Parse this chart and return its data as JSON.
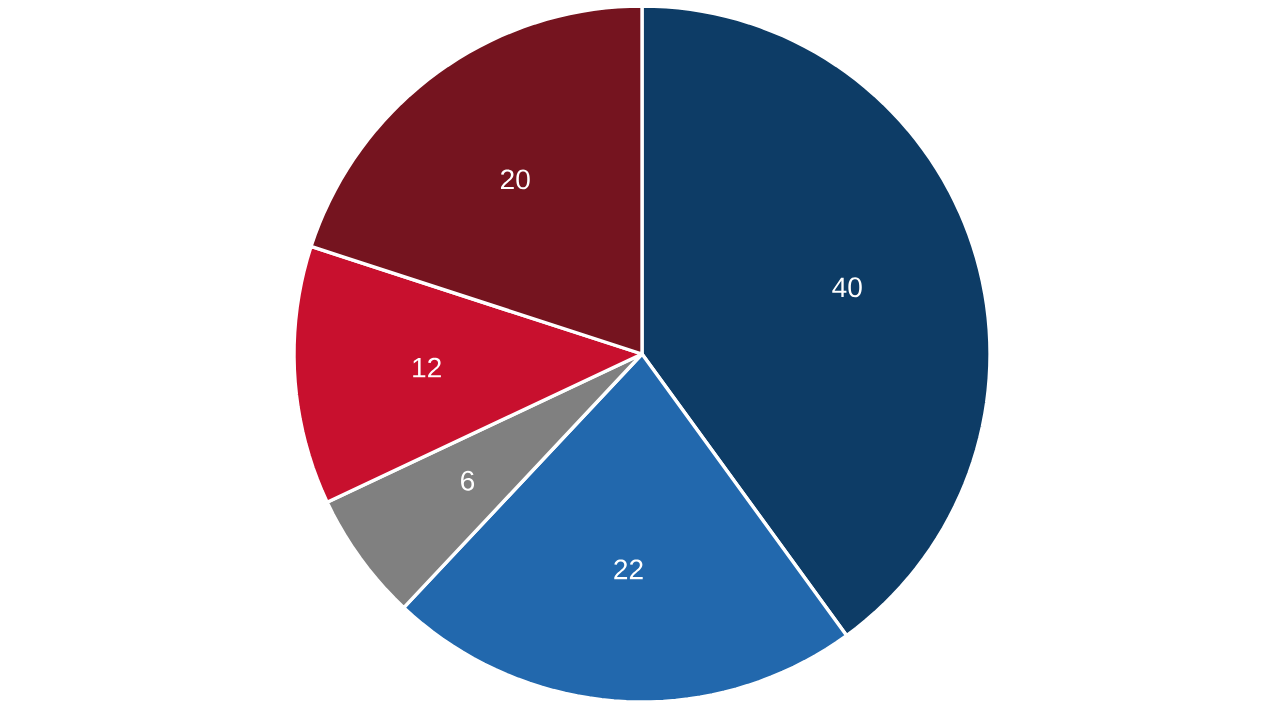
{
  "chart_data": {
    "type": "pie",
    "categories": [
      null,
      null,
      null,
      null,
      null
    ],
    "values": [
      40,
      22,
      6,
      12,
      20
    ],
    "colors": [
      "#0d3c66",
      "#2268ad",
      "#808080",
      "#c8102e",
      "#75141f"
    ],
    "data_labels": true
  }
}
